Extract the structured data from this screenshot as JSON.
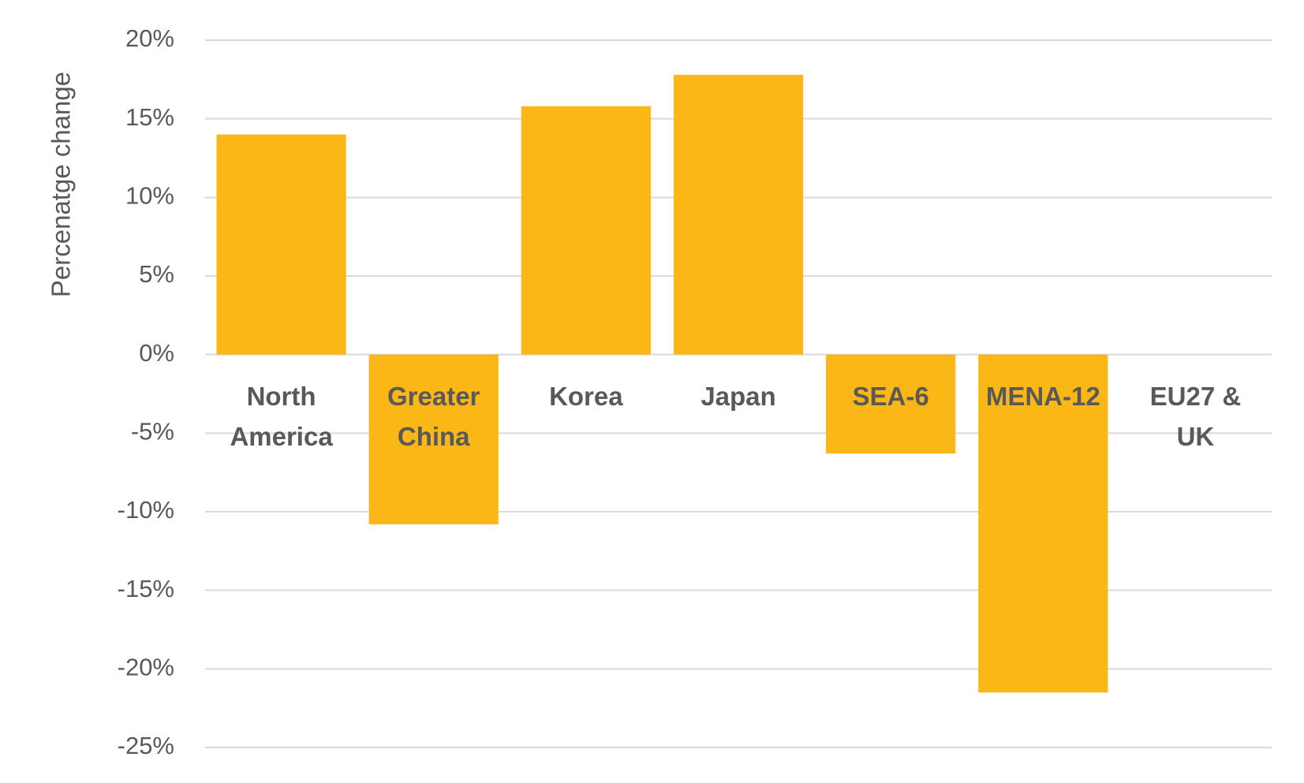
{
  "chart_data": {
    "type": "bar",
    "y_label": "Percenatge change",
    "categories": [
      "North America",
      "Greater China",
      "Korea",
      "Japan",
      "SEA-6",
      "MENA-12",
      "EU27 & UK"
    ],
    "values": [
      14.0,
      -10.8,
      15.8,
      17.8,
      -6.3,
      -21.5,
      0
    ],
    "color": "#fbb715",
    "ylim": [
      -25,
      20
    ],
    "yticks": [
      {
        "value": -25,
        "label": "-25%"
      },
      {
        "value": -20,
        "label": "-20%"
      },
      {
        "value": -15,
        "label": "-15%"
      },
      {
        "value": -10,
        "label": "-10%"
      },
      {
        "value": -5,
        "label": "-5%"
      },
      {
        "value": 0,
        "label": "0%"
      },
      {
        "value": 5,
        "label": "5%"
      },
      {
        "value": 10,
        "label": "10%"
      },
      {
        "value": 15,
        "label": "15%"
      },
      {
        "value": 20,
        "label": "20%"
      }
    ],
    "grid": true
  }
}
